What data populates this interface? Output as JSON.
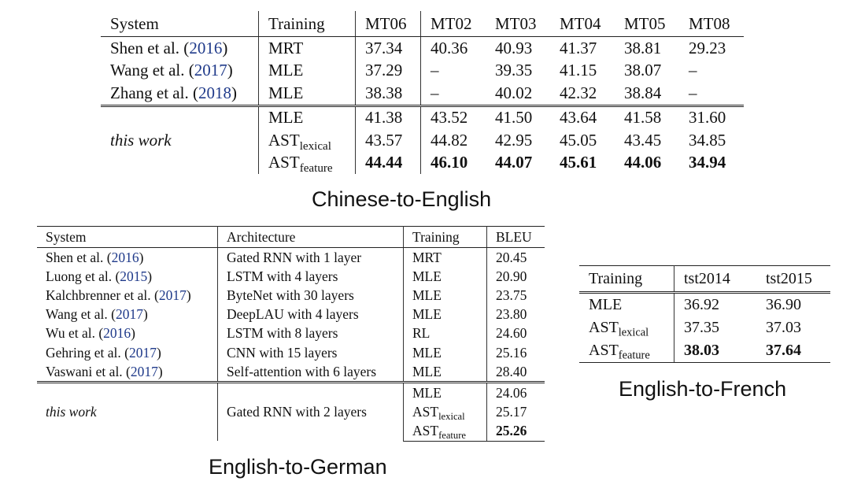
{
  "zh_en": {
    "caption": "Chinese-to-English",
    "headers": [
      "System",
      "Training",
      "MT06",
      "MT02",
      "MT03",
      "MT04",
      "MT05",
      "MT08"
    ],
    "prior": [
      {
        "sys_name": "Shen et al. (",
        "sys_year": "2016",
        "sys_end": ")",
        "training": "MRT",
        "scores": [
          "37.34",
          "40.36",
          "40.93",
          "41.37",
          "38.81",
          "29.23"
        ]
      },
      {
        "sys_name": "Wang et al. (",
        "sys_year": "2017",
        "sys_end": ")",
        "training": "MLE",
        "scores": [
          "37.29",
          "–",
          "39.35",
          "41.15",
          "38.07",
          "–"
        ]
      },
      {
        "sys_name": "Zhang et al. (",
        "sys_year": "2018",
        "sys_end": ")",
        "training": "MLE",
        "scores": [
          "38.38",
          "–",
          "40.02",
          "42.32",
          "38.84",
          "–"
        ]
      }
    ],
    "this_work_label": "this work",
    "ours": [
      {
        "training": "MLE",
        "sub": "",
        "scores": [
          "41.38",
          "43.52",
          "41.50",
          "43.64",
          "41.58",
          "31.60"
        ]
      },
      {
        "training": "AST",
        "sub": "lexical",
        "scores": [
          "43.57",
          "44.82",
          "42.95",
          "45.05",
          "43.45",
          "34.85"
        ]
      },
      {
        "training": "AST",
        "sub": "feature",
        "scores": [
          "44.44",
          "46.10",
          "44.07",
          "45.61",
          "44.06",
          "34.94"
        ]
      }
    ]
  },
  "en_de": {
    "caption": "English-to-German",
    "headers": [
      "System",
      "Architecture",
      "Training",
      "BLEU"
    ],
    "prior": [
      {
        "sys_name": "Shen et al. (",
        "sys_year": "2016",
        "sys_end": ")",
        "arch": "Gated RNN with 1 layer",
        "training": "MRT",
        "bleu": "20.45"
      },
      {
        "sys_name": "Luong et al. (",
        "sys_year": "2015",
        "sys_end": ")",
        "arch": "LSTM with 4 layers",
        "training": "MLE",
        "bleu": "20.90"
      },
      {
        "sys_name": "Kalchbrenner et al. (",
        "sys_year": "2017",
        "sys_end": ")",
        "arch": "ByteNet with 30 layers",
        "training": "MLE",
        "bleu": "23.75"
      },
      {
        "sys_name": "Wang et al. (",
        "sys_year": "2017",
        "sys_end": ")",
        "arch": "DeepLAU with 4 layers",
        "training": "MLE",
        "bleu": "23.80"
      },
      {
        "sys_name": "Wu et al. (",
        "sys_year": "2016",
        "sys_end": ")",
        "arch": "LSTM with 8 layers",
        "training": "RL",
        "bleu": "24.60"
      },
      {
        "sys_name": "Gehring et al. (",
        "sys_year": "2017",
        "sys_end": ")",
        "arch": "CNN with 15 layers",
        "training": "MLE",
        "bleu": "25.16"
      },
      {
        "sys_name": "Vaswani et al. (",
        "sys_year": "2017",
        "sys_end": ")",
        "arch": "Self-attention with 6 layers",
        "training": "MLE",
        "bleu": "28.40"
      }
    ],
    "this_work_label": "this work",
    "ours_arch": "Gated RNN with 2 layers",
    "ours": [
      {
        "training": "MLE",
        "sub": "",
        "bleu": "24.06"
      },
      {
        "training": "AST",
        "sub": "lexical",
        "bleu": "25.17"
      },
      {
        "training": "AST",
        "sub": "feature",
        "bleu": "25.26"
      }
    ]
  },
  "en_fr": {
    "caption": "English-to-French",
    "headers": [
      "Training",
      "tst2014",
      "tst2015"
    ],
    "rows": [
      {
        "training": "MLE",
        "sub": "",
        "scores": [
          "36.92",
          "36.90"
        ]
      },
      {
        "training": "AST",
        "sub": "lexical",
        "scores": [
          "37.35",
          "37.03"
        ]
      },
      {
        "training": "AST",
        "sub": "feature",
        "scores": [
          "38.03",
          "37.64"
        ]
      }
    ]
  }
}
